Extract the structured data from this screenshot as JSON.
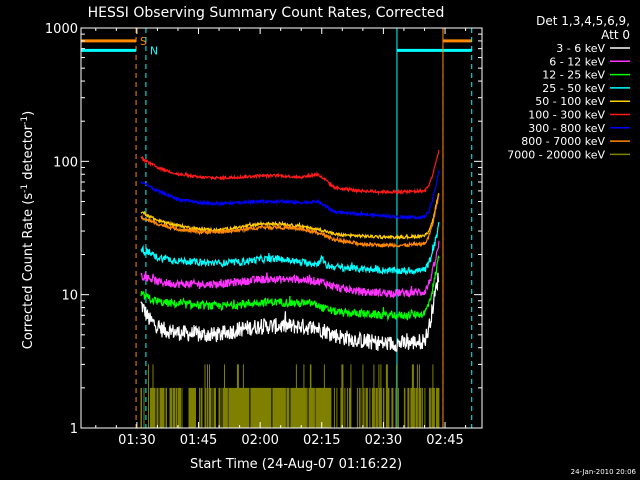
{
  "chart_data": {
    "type": "line",
    "title": "HESSI Observing Summary Count Rates, Corrected",
    "xlabel": "Start Time (24-Aug-07 01:16:22)",
    "ylabel_main": "Corrected Count Rate (s",
    "ylabel_sup1": "-1",
    "ylabel_mid": " detector",
    "ylabel_sup2": "-1",
    "ylabel_end": ")",
    "yscale": "log",
    "ylim": [
      1,
      1000
    ],
    "xlim_minutes": [
      76.4,
      174
    ],
    "x_ticks": [
      {
        "m": 90,
        "label": "01:30"
      },
      {
        "m": 105,
        "label": "01:45"
      },
      {
        "m": 120,
        "label": "02:00"
      },
      {
        "m": 135,
        "label": "02:15"
      },
      {
        "m": 150,
        "label": "02:30"
      },
      {
        "m": 165,
        "label": "02:45"
      }
    ],
    "y_ticks": [
      {
        "v": 1,
        "label": "1"
      },
      {
        "v": 10,
        "label": "10"
      },
      {
        "v": 100,
        "label": "100"
      },
      {
        "v": 1000,
        "label": "1000"
      }
    ],
    "legend_header": [
      "Det 1,3,4,5,6,9,",
      "Att 0"
    ],
    "legend_position": "right",
    "data_start_minute": 91,
    "data_end_minute": 163.5,
    "series": [
      {
        "name": "3 - 6 keV",
        "color": "#ffffff",
        "noise": 0.14,
        "points": [
          [
            91,
            8.5
          ],
          [
            93,
            6.5
          ],
          [
            96,
            5.5
          ],
          [
            100,
            5.2
          ],
          [
            105,
            5.0
          ],
          [
            110,
            5.0
          ],
          [
            115,
            5.5
          ],
          [
            120,
            5.8
          ],
          [
            125,
            5.8
          ],
          [
            130,
            5.8
          ],
          [
            135,
            5.5
          ],
          [
            138,
            5.0
          ],
          [
            140,
            4.8
          ],
          [
            145,
            4.5
          ],
          [
            150,
            4.3
          ],
          [
            155,
            4.3
          ],
          [
            160,
            4.5
          ],
          [
            161,
            5.5
          ],
          [
            162,
            8
          ],
          [
            163,
            12
          ],
          [
            163.5,
            14
          ]
        ]
      },
      {
        "name": "6 - 12 keV",
        "color": "#ff33ff",
        "noise": 0.07,
        "points": [
          [
            91,
            14
          ],
          [
            95,
            12.5
          ],
          [
            100,
            12
          ],
          [
            105,
            12
          ],
          [
            110,
            12
          ],
          [
            115,
            12.5
          ],
          [
            120,
            13
          ],
          [
            125,
            13
          ],
          [
            130,
            13
          ],
          [
            135,
            12.5
          ],
          [
            138,
            11.5
          ],
          [
            140,
            11
          ],
          [
            145,
            10.5
          ],
          [
            150,
            10.3
          ],
          [
            155,
            10.3
          ],
          [
            160,
            10.5
          ],
          [
            161,
            12
          ],
          [
            162,
            15
          ],
          [
            163,
            20
          ],
          [
            163.5,
            24
          ]
        ]
      },
      {
        "name": "12 - 25 keV",
        "color": "#00ff00",
        "noise": 0.07,
        "points": [
          [
            91,
            10
          ],
          [
            95,
            8.8
          ],
          [
            100,
            8.5
          ],
          [
            105,
            8.3
          ],
          [
            110,
            8.2
          ],
          [
            115,
            8.4
          ],
          [
            120,
            8.8
          ],
          [
            125,
            8.8
          ],
          [
            130,
            8.6
          ],
          [
            133,
            8.6
          ],
          [
            135,
            8.0
          ],
          [
            138,
            7.5
          ],
          [
            140,
            7.3
          ],
          [
            145,
            7.2
          ],
          [
            150,
            7.0
          ],
          [
            155,
            7.0
          ],
          [
            160,
            7.2
          ],
          [
            161,
            8.5
          ],
          [
            162,
            11
          ],
          [
            163,
            16
          ],
          [
            163.5,
            20
          ]
        ]
      },
      {
        "name": "25 - 50 keV",
        "color": "#00ffff",
        "noise": 0.06,
        "points": [
          [
            91,
            22
          ],
          [
            95,
            19
          ],
          [
            100,
            18
          ],
          [
            105,
            17.5
          ],
          [
            110,
            17.2
          ],
          [
            115,
            17.5
          ],
          [
            120,
            18.5
          ],
          [
            125,
            18.5
          ],
          [
            130,
            17.5
          ],
          [
            134,
            17
          ],
          [
            135,
            19
          ],
          [
            136,
            16.5
          ],
          [
            140,
            16
          ],
          [
            145,
            15.5
          ],
          [
            150,
            15.2
          ],
          [
            155,
            15
          ],
          [
            160,
            15.3
          ],
          [
            161,
            17
          ],
          [
            162,
            21
          ],
          [
            163,
            28
          ],
          [
            163.5,
            34
          ]
        ]
      },
      {
        "name": "50 - 100 keV",
        "color": "#ffcc00",
        "noise": 0.025,
        "points": [
          [
            91,
            42
          ],
          [
            95,
            36
          ],
          [
            100,
            33
          ],
          [
            105,
            31
          ],
          [
            110,
            30.5
          ],
          [
            115,
            32
          ],
          [
            120,
            34
          ],
          [
            125,
            34
          ],
          [
            130,
            32.5
          ],
          [
            135,
            30.5
          ],
          [
            138,
            28.5
          ],
          [
            140,
            28
          ],
          [
            145,
            27.5
          ],
          [
            150,
            27
          ],
          [
            155,
            27
          ],
          [
            160,
            27.5
          ],
          [
            161,
            30
          ],
          [
            162,
            36
          ],
          [
            163,
            50
          ],
          [
            163.5,
            58
          ]
        ]
      },
      {
        "name": "100 - 300 keV",
        "color": "#ff1a1a",
        "noise": 0.025,
        "points": [
          [
            91,
            105
          ],
          [
            95,
            90
          ],
          [
            100,
            80
          ],
          [
            105,
            76
          ],
          [
            110,
            75
          ],
          [
            115,
            76
          ],
          [
            120,
            78
          ],
          [
            125,
            78
          ],
          [
            130,
            76
          ],
          [
            134,
            80
          ],
          [
            136,
            72
          ],
          [
            138,
            64
          ],
          [
            140,
            62
          ],
          [
            145,
            60
          ],
          [
            150,
            59
          ],
          [
            155,
            59
          ],
          [
            160,
            60
          ],
          [
            161,
            65
          ],
          [
            162,
            80
          ],
          [
            163,
            105
          ],
          [
            163.5,
            120
          ]
        ]
      },
      {
        "name": "300 - 800 keV",
        "color": "#0000ff",
        "noise": 0.025,
        "points": [
          [
            91,
            70
          ],
          [
            95,
            60
          ],
          [
            100,
            52
          ],
          [
            105,
            49
          ],
          [
            110,
            48
          ],
          [
            115,
            49
          ],
          [
            120,
            50
          ],
          [
            125,
            50
          ],
          [
            130,
            49
          ],
          [
            134,
            50
          ],
          [
            136,
            46
          ],
          [
            138,
            42
          ],
          [
            140,
            41
          ],
          [
            145,
            40
          ],
          [
            150,
            39
          ],
          [
            155,
            38
          ],
          [
            160,
            38
          ],
          [
            161,
            42
          ],
          [
            162,
            52
          ],
          [
            163,
            70
          ],
          [
            163.5,
            85
          ]
        ]
      },
      {
        "name": "800 - 7000 keV",
        "color": "#ff8800",
        "noise": 0.03,
        "points": [
          [
            91,
            38
          ],
          [
            95,
            34
          ],
          [
            100,
            31
          ],
          [
            105,
            29.5
          ],
          [
            110,
            29.5
          ],
          [
            115,
            30.5
          ],
          [
            120,
            32
          ],
          [
            125,
            32
          ],
          [
            130,
            31
          ],
          [
            135,
            28.5
          ],
          [
            138,
            26
          ],
          [
            140,
            25
          ],
          [
            145,
            24
          ],
          [
            150,
            23.5
          ],
          [
            155,
            23.5
          ],
          [
            160,
            24
          ],
          [
            161,
            27
          ],
          [
            162,
            34
          ],
          [
            163,
            48
          ],
          [
            163.5,
            56
          ]
        ]
      },
      {
        "name": "7000 - 20000 keV",
        "color": "#808000",
        "style": "spiky",
        "noise": 0,
        "points": [
          [
            91,
            2
          ],
          [
            163.5,
            3
          ]
        ]
      }
    ],
    "markers": [
      {
        "type": "flag",
        "label": "S",
        "color": "#ff8800",
        "minute": 89.8,
        "level": 800,
        "dash": true
      },
      {
        "type": "flag",
        "label": "N",
        "color": "#00ffff",
        "minute": 92.2,
        "level": 680,
        "dash": true
      },
      {
        "type": "band",
        "color": "#00ffff",
        "m1": 76.4,
        "m2": 89.8,
        "level": 680
      },
      {
        "type": "band",
        "color": "#00ffff",
        "m1": 153.3,
        "m2": 171.5,
        "level": 680
      },
      {
        "type": "band",
        "color": "#ff8800",
        "m1": 76.4,
        "m2": 89.8,
        "level": 800
      },
      {
        "type": "band",
        "color": "#ff8800",
        "m1": 164.5,
        "m2": 171.5,
        "level": 800
      },
      {
        "type": "vline",
        "color": "#00ffff",
        "minute": 76.4,
        "dash": false
      },
      {
        "type": "vline",
        "color": "#00ffff",
        "minute": 153.3,
        "dash": false
      },
      {
        "type": "vline",
        "color": "#ff8800",
        "minute": 164.5,
        "dash": false
      },
      {
        "type": "vline",
        "color": "#ff8800",
        "minute": 164.5,
        "dash": true
      },
      {
        "type": "vline",
        "color": "#00ffff",
        "minute": 171.5,
        "dash": true
      }
    ]
  },
  "footer_stamp": "24-Jan-2010 20:06"
}
